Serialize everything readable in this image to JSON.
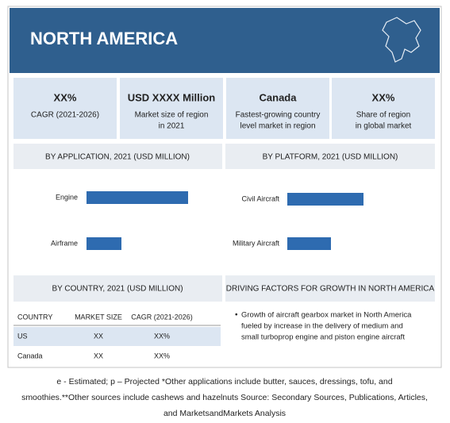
{
  "header": {
    "title": "NORTH AMERICA"
  },
  "stats": [
    {
      "value": "XX%",
      "label": [
        "CAGR (2021-2026)"
      ]
    },
    {
      "value": "USD XXXX Million",
      "label": [
        "Market size of region",
        "in 2021"
      ]
    },
    {
      "value": "Canada",
      "label": [
        "Fastest-growing country",
        "level market in region"
      ]
    },
    {
      "value": "XX%",
      "label": [
        "Share of region",
        "in global market"
      ]
    }
  ],
  "chart_data": [
    {
      "type": "hbar",
      "title": "BY APPLICATION, 2021 (USD MILLION)",
      "categories": [
        "Engine",
        "Airframe"
      ],
      "values": [
        128,
        44
      ],
      "color": "#2e6bb0"
    },
    {
      "type": "hbar",
      "title": "BY PLATFORM, 2021 (USD MILLION)",
      "categories": [
        "Civil Aircraft",
        "Military Aircraft"
      ],
      "values": [
        96,
        55
      ],
      "color": "#2e6bb0"
    }
  ],
  "country_table": {
    "title": "BY COUNTRY, 2021 (USD MILLION)",
    "columns": [
      "COUNTRY",
      "MARKET SIZE",
      "CAGR (2021-2026)"
    ],
    "rows": [
      [
        "US",
        "XX",
        "XX%"
      ],
      [
        "Canada",
        "XX",
        "XX%"
      ]
    ]
  },
  "drivers": {
    "title": "DRIVING FACTORS FOR GROWTH IN NORTH AMERICA",
    "lines": [
      "Growth of aircraft gearbox market in North America",
      "fueled by increase in the delivery of medium and",
      "small turboprop engine and piston engine aircraft"
    ]
  },
  "footnote": [
    "e - Estimated; p – Projected *Other applications include butter, sauces, dressings, tofu, and",
    "smoothies.**Other sources include cashews and hazelnuts  Source: Secondary Sources, Publications, Articles,",
    "and MarketsandMarkets Analysis"
  ]
}
